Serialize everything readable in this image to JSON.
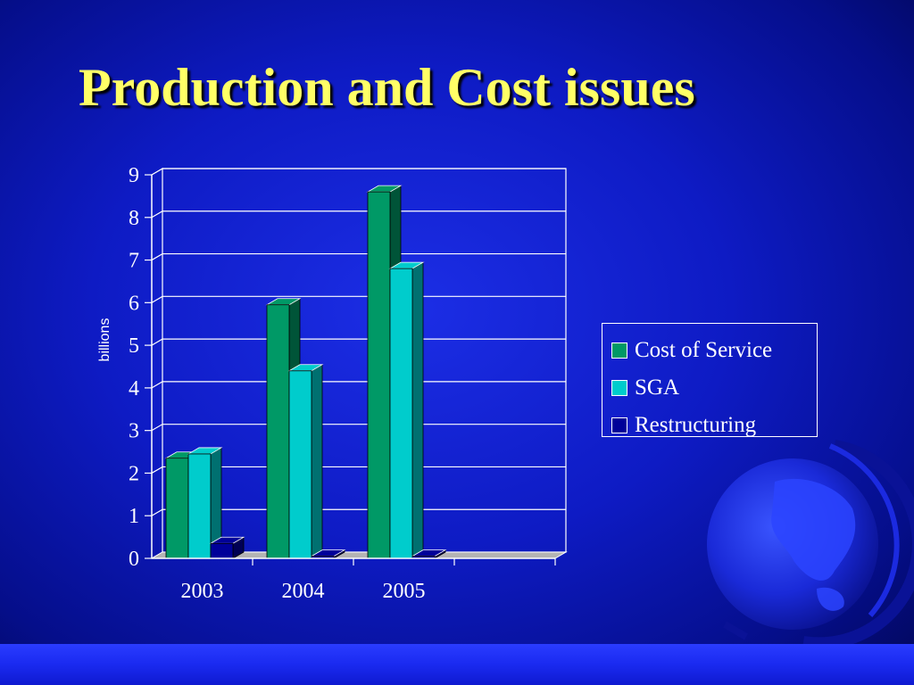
{
  "slide": {
    "title": "Production and Cost issues",
    "background": "#0e1bc4",
    "title_color": "#ffff66"
  },
  "decoration": {
    "icon": "globe-icon"
  },
  "chart_data": {
    "type": "bar",
    "style": "3d-clustered",
    "categories": [
      "2003",
      "2004",
      "2005"
    ],
    "series": [
      {
        "name": "Cost of Service",
        "values": [
          2.35,
          5.95,
          8.6
        ],
        "color": "#009966"
      },
      {
        "name": "SGA",
        "values": [
          2.45,
          4.4,
          6.8
        ],
        "color": "#00cccc"
      },
      {
        "name": "Restructuring",
        "values": [
          0.35,
          0.05,
          0.05
        ],
        "color": "#000099"
      }
    ],
    "ylabel": "billions",
    "xlabel": "",
    "ylim": [
      0,
      9
    ],
    "yticks": [
      "0",
      "1",
      "2",
      "3",
      "4",
      "5",
      "6",
      "7",
      "8",
      "9"
    ],
    "grid": true,
    "legend": "right"
  }
}
